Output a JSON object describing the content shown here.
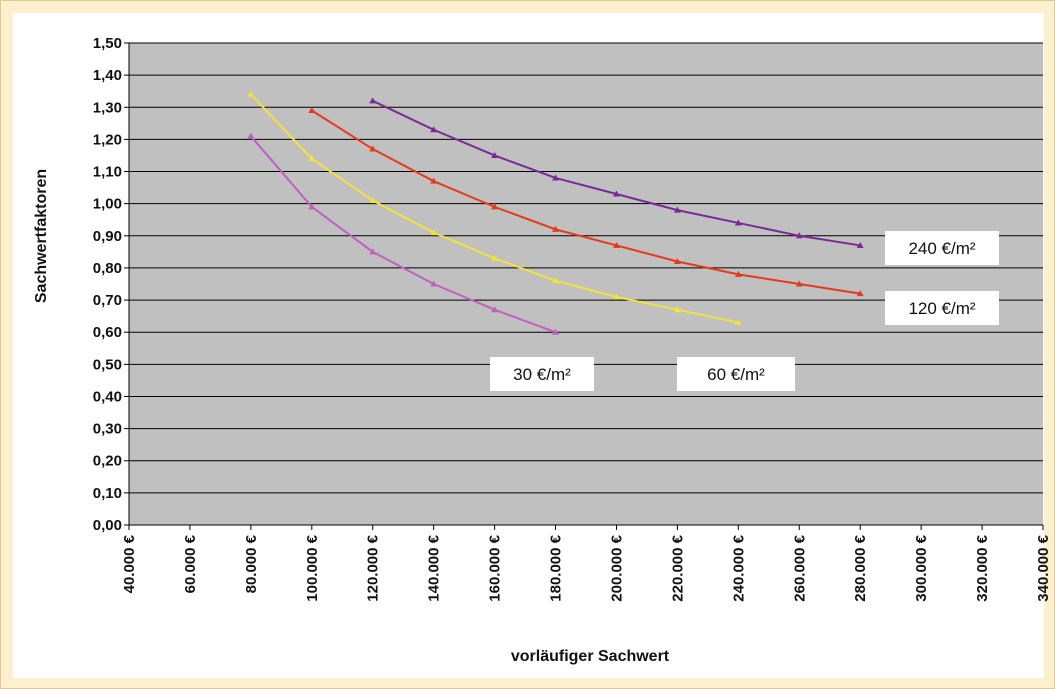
{
  "chart_data": {
    "type": "line",
    "xlabel": "vorläufiger Sachwert",
    "ylabel": "Sachwertfaktoren",
    "xlim": [
      40000,
      340000
    ],
    "ylim": [
      0,
      1.5
    ],
    "x_ticks": [
      "40.000 €",
      "60.000 €",
      "80.000 €",
      "100.000 €",
      "120.000 €",
      "140.000 €",
      "160.000 €",
      "180.000 €",
      "200.000 €",
      "220.000 €",
      "240.000 €",
      "260.000 €",
      "280.000 €",
      "300.000 €",
      "320.000 €",
      "340.000 €"
    ],
    "y_ticks": [
      "0,00",
      "0,10",
      "0,20",
      "0,30",
      "0,40",
      "0,50",
      "0,60",
      "0,70",
      "0,80",
      "0,90",
      "1,00",
      "1,10",
      "1,20",
      "1,30",
      "1,40",
      "1,50"
    ],
    "grid": true,
    "plot_background": "#c0c0c0",
    "series": [
      {
        "name": "30 €/m²",
        "color": "#c060c0",
        "x": [
          80000,
          100000,
          120000,
          140000,
          160000,
          180000
        ],
        "y": [
          1.21,
          0.99,
          0.85,
          0.75,
          0.67,
          0.6
        ]
      },
      {
        "name": "60 €/m²",
        "color": "#f2e23a",
        "x": [
          80000,
          100000,
          120000,
          140000,
          160000,
          180000,
          200000,
          220000,
          240000
        ],
        "y": [
          1.34,
          1.14,
          1.01,
          0.91,
          0.83,
          0.76,
          0.71,
          0.67,
          0.63
        ]
      },
      {
        "name": "120 €/m²",
        "color": "#e63a1e",
        "x": [
          100000,
          120000,
          140000,
          160000,
          180000,
          200000,
          220000,
          240000,
          260000,
          280000
        ],
        "y": [
          1.29,
          1.17,
          1.07,
          0.99,
          0.92,
          0.87,
          0.82,
          0.78,
          0.75,
          0.72
        ]
      },
      {
        "name": "240 €/m²",
        "color": "#7a2a96",
        "x": [
          120000,
          140000,
          160000,
          180000,
          200000,
          220000,
          240000,
          260000,
          280000
        ],
        "y": [
          1.32,
          1.23,
          1.15,
          1.08,
          1.03,
          0.98,
          0.94,
          0.9,
          0.87
        ]
      }
    ],
    "annotations": [
      {
        "text": "240 €/m²",
        "series": "240 €/m²"
      },
      {
        "text": "120 €/m²",
        "series": "120 €/m²"
      },
      {
        "text": "30 €/m²",
        "series": "30 €/m²"
      },
      {
        "text": "60 €/m²",
        "series": "60 €/m²"
      }
    ]
  }
}
